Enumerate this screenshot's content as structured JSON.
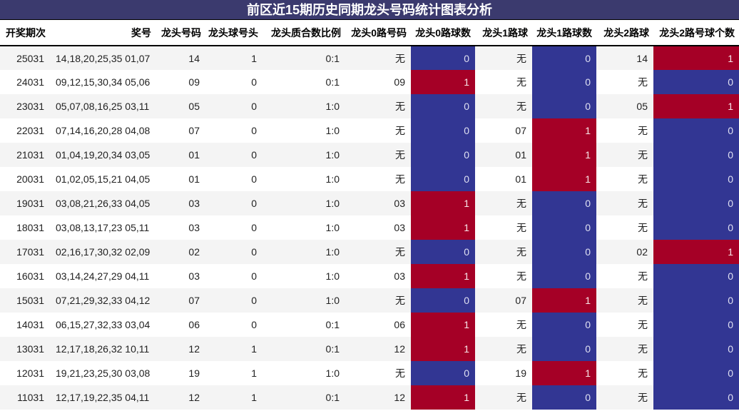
{
  "title": "前区近15期历史同期龙头号码统计图表分析",
  "headers": [
    "开奖期次",
    "奖号",
    "龙头号码",
    "龙头球号头",
    "龙头质合数比例",
    "龙头0路号码",
    "龙头0路球数",
    "龙头1路球",
    "龙头1路球数",
    "龙头2路球",
    "龙头2路号球个数"
  ],
  "colors": {
    "title_bg": "#3b3a6e",
    "zero_cell": "#323693",
    "one_cell": "#a50026",
    "alt_row": "#f4f4f4"
  },
  "rows": [
    {
      "period": "25031",
      "numbers": "14,18,20,25,35 01,07",
      "head": "14",
      "head_digit": "1",
      "ratio": "0:1",
      "r0": "无",
      "r0n": "0",
      "r1": "无",
      "r1n": "0",
      "r2": "14",
      "r2n": "1"
    },
    {
      "period": "24031",
      "numbers": "09,12,15,30,34 05,06",
      "head": "09",
      "head_digit": "0",
      "ratio": "0:1",
      "r0": "09",
      "r0n": "1",
      "r1": "无",
      "r1n": "0",
      "r2": "无",
      "r2n": "0"
    },
    {
      "period": "23031",
      "numbers": "05,07,08,16,25 03,11",
      "head": "05",
      "head_digit": "0",
      "ratio": "1:0",
      "r0": "无",
      "r0n": "0",
      "r1": "无",
      "r1n": "0",
      "r2": "05",
      "r2n": "1"
    },
    {
      "period": "22031",
      "numbers": "07,14,16,20,28 04,08",
      "head": "07",
      "head_digit": "0",
      "ratio": "1:0",
      "r0": "无",
      "r0n": "0",
      "r1": "07",
      "r1n": "1",
      "r2": "无",
      "r2n": "0"
    },
    {
      "period": "21031",
      "numbers": "01,04,19,20,34 03,05",
      "head": "01",
      "head_digit": "0",
      "ratio": "1:0",
      "r0": "无",
      "r0n": "0",
      "r1": "01",
      "r1n": "1",
      "r2": "无",
      "r2n": "0"
    },
    {
      "period": "20031",
      "numbers": "01,02,05,15,21 04,05",
      "head": "01",
      "head_digit": "0",
      "ratio": "1:0",
      "r0": "无",
      "r0n": "0",
      "r1": "01",
      "r1n": "1",
      "r2": "无",
      "r2n": "0"
    },
    {
      "period": "19031",
      "numbers": "03,08,21,26,33 04,05",
      "head": "03",
      "head_digit": "0",
      "ratio": "1:0",
      "r0": "03",
      "r0n": "1",
      "r1": "无",
      "r1n": "0",
      "r2": "无",
      "r2n": "0"
    },
    {
      "period": "18031",
      "numbers": "03,08,13,17,23 05,11",
      "head": "03",
      "head_digit": "0",
      "ratio": "1:0",
      "r0": "03",
      "r0n": "1",
      "r1": "无",
      "r1n": "0",
      "r2": "无",
      "r2n": "0"
    },
    {
      "period": "17031",
      "numbers": "02,16,17,30,32 02,09",
      "head": "02",
      "head_digit": "0",
      "ratio": "1:0",
      "r0": "无",
      "r0n": "0",
      "r1": "无",
      "r1n": "0",
      "r2": "02",
      "r2n": "1"
    },
    {
      "period": "16031",
      "numbers": "03,14,24,27,29 04,11",
      "head": "03",
      "head_digit": "0",
      "ratio": "1:0",
      "r0": "03",
      "r0n": "1",
      "r1": "无",
      "r1n": "0",
      "r2": "无",
      "r2n": "0"
    },
    {
      "period": "15031",
      "numbers": "07,21,29,32,33 04,12",
      "head": "07",
      "head_digit": "0",
      "ratio": "1:0",
      "r0": "无",
      "r0n": "0",
      "r1": "07",
      "r1n": "1",
      "r2": "无",
      "r2n": "0"
    },
    {
      "period": "14031",
      "numbers": "06,15,27,32,33 03,04",
      "head": "06",
      "head_digit": "0",
      "ratio": "0:1",
      "r0": "06",
      "r0n": "1",
      "r1": "无",
      "r1n": "0",
      "r2": "无",
      "r2n": "0"
    },
    {
      "period": "13031",
      "numbers": "12,17,18,26,32 10,11",
      "head": "12",
      "head_digit": "1",
      "ratio": "0:1",
      "r0": "12",
      "r0n": "1",
      "r1": "无",
      "r1n": "0",
      "r2": "无",
      "r2n": "0"
    },
    {
      "period": "12031",
      "numbers": "19,21,23,25,30 03,08",
      "head": "19",
      "head_digit": "1",
      "ratio": "1:0",
      "r0": "无",
      "r0n": "0",
      "r1": "19",
      "r1n": "1",
      "r2": "无",
      "r2n": "0"
    },
    {
      "period": "11031",
      "numbers": "12,17,19,22,35 04,11",
      "head": "12",
      "head_digit": "1",
      "ratio": "0:1",
      "r0": "12",
      "r0n": "1",
      "r1": "无",
      "r1n": "0",
      "r2": "无",
      "r2n": "0"
    }
  ]
}
